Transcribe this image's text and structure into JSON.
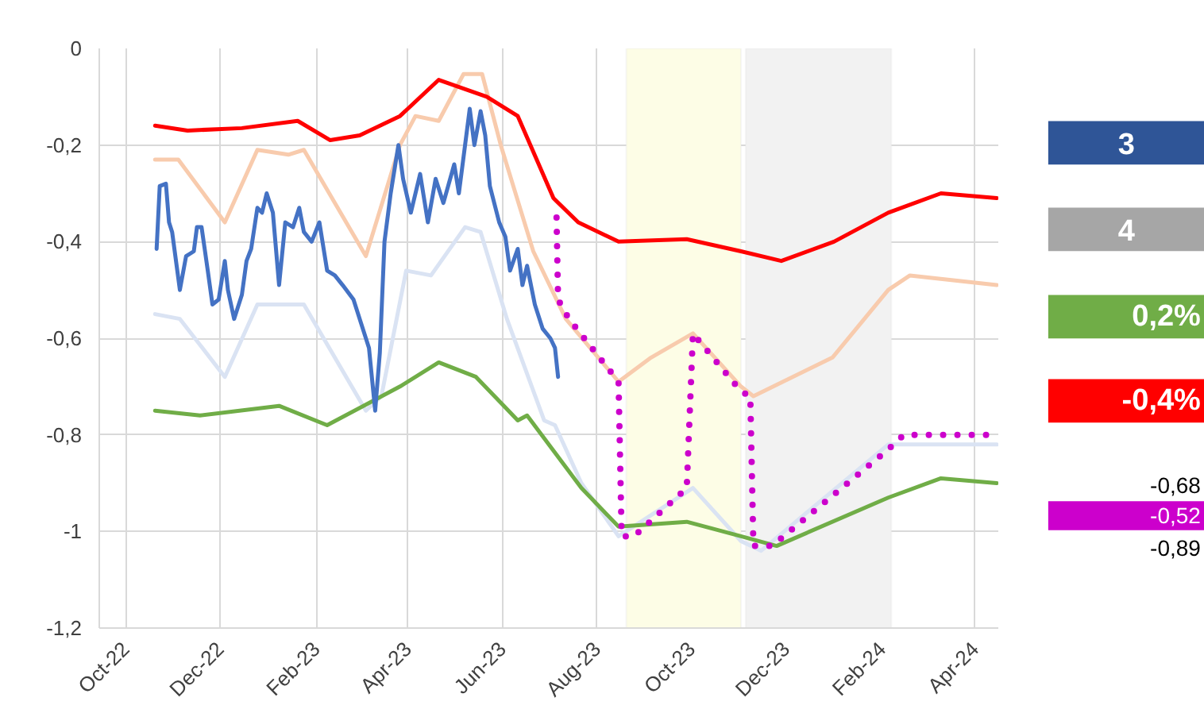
{
  "chart_data": {
    "type": "line",
    "xlim": [
      "2022-09-14",
      "2024-04-16"
    ],
    "ylim": [
      -1.2,
      0
    ],
    "xticks": [
      {
        "value": "2022-10-01",
        "label": "Oct-22"
      },
      {
        "value": "2022-12-01",
        "label": "Dec-22"
      },
      {
        "value": "2023-02-01",
        "label": "Feb-23"
      },
      {
        "value": "2023-04-01",
        "label": "Apr-23"
      },
      {
        "value": "2023-06-01",
        "label": "Jun-23"
      },
      {
        "value": "2023-08-01",
        "label": "Aug-23"
      },
      {
        "value": "2023-10-01",
        "label": "Oct-23"
      },
      {
        "value": "2023-12-01",
        "label": "Dec-23"
      },
      {
        "value": "2024-02-01",
        "label": "Feb-24"
      },
      {
        "value": "2024-04-01",
        "label": "Apr-24"
      }
    ],
    "yticks": [
      {
        "value": -1.2,
        "label": "-1,2"
      },
      -1,
      {
        "value": -0.8,
        "label": "-0,8"
      },
      {
        "value": -0.6,
        "label": "-0,6"
      },
      {
        "value": -0.4,
        "label": "-0,4"
      },
      {
        "value": -0.2,
        "label": "-0,2"
      },
      0
    ],
    "grid": true,
    "bands": [
      {
        "axis": "x",
        "from": "2023-08-20",
        "to": "2023-11-02",
        "color": "#fdfde6"
      },
      {
        "axis": "x",
        "from": "2023-11-05",
        "to": "2024-02-07",
        "color": "#f2f2f2"
      }
    ],
    "series": [
      {
        "color": "#dae3f3",
        "x": [
          "2022-10-20",
          "2022-11-05",
          "2022-12-04",
          "2022-12-25",
          "2023-01-24",
          "2023-03-05",
          "2023-03-15",
          "2023-03-31",
          "2023-04-16",
          "2023-05-08",
          "2023-05-18",
          "2023-06-04",
          "2023-06-28",
          "2023-07-05",
          "2023-07-22",
          "2023-08-15",
          "2023-10-02",
          "2023-11-02",
          "2023-11-15",
          "2024-02-05",
          "2024-04-15"
        ],
        "values": [
          -0.55,
          -0.56,
          -0.68,
          -0.53,
          -0.53,
          -0.75,
          -0.72,
          -0.46,
          -0.47,
          -0.37,
          -0.38,
          -0.56,
          -0.77,
          -0.78,
          -0.9,
          -1.01,
          -0.91,
          -1.02,
          -1.04,
          -0.82,
          -0.82
        ]
      },
      {
        "color": "#f8cbad",
        "x": [
          "2022-10-20",
          "2022-11-04",
          "2022-12-04",
          "2022-12-25",
          "2023-01-14",
          "2023-01-24",
          "2023-03-05",
          "2023-03-27",
          "2023-04-06",
          "2023-04-21",
          "2023-05-07",
          "2023-05-19",
          "2023-05-31",
          "2023-06-21",
          "2023-07-12",
          "2023-08-15",
          "2023-09-05",
          "2023-10-02",
          "2023-11-02",
          "2023-11-10",
          "2023-12-31",
          "2024-02-05",
          "2024-02-19",
          "2024-04-15"
        ],
        "values": [
          -0.23,
          -0.23,
          -0.36,
          -0.21,
          -0.22,
          -0.21,
          -0.43,
          -0.2,
          -0.14,
          -0.15,
          -0.053,
          -0.053,
          -0.2,
          -0.42,
          -0.56,
          -0.69,
          -0.64,
          -0.59,
          -0.7,
          -0.72,
          -0.64,
          -0.5,
          -0.47,
          -0.49
        ]
      },
      {
        "color": "#ff0000",
        "x": [
          "2022-10-20",
          "2022-11-10",
          "2022-12-15",
          "2023-01-20",
          "2023-02-10",
          "2023-03-01",
          "2023-03-27",
          "2023-04-21",
          "2023-05-22",
          "2023-06-11",
          "2023-07-04",
          "2023-07-20",
          "2023-08-15",
          "2023-09-28",
          "2023-11-02",
          "2023-11-28",
          "2024-01-01",
          "2024-02-05",
          "2024-03-10",
          "2024-04-15"
        ],
        "values": [
          -0.16,
          -0.17,
          -0.165,
          -0.15,
          -0.19,
          -0.18,
          -0.14,
          -0.065,
          -0.1,
          -0.14,
          -0.31,
          -0.36,
          -0.4,
          -0.395,
          -0.42,
          -0.44,
          -0.4,
          -0.34,
          -0.3,
          -0.31
        ]
      },
      {
        "color": "#70ad47",
        "x": [
          "2022-10-20",
          "2022-11-18",
          "2023-01-08",
          "2023-02-08",
          "2023-03-27",
          "2023-04-21",
          "2023-05-15",
          "2023-06-11",
          "2023-06-17",
          "2023-07-22",
          "2023-08-15",
          "2023-09-28",
          "2023-11-02",
          "2023-11-25",
          "2024-02-05",
          "2024-03-10",
          "2024-04-15"
        ],
        "values": [
          -0.75,
          -0.76,
          -0.74,
          -0.78,
          -0.7,
          -0.65,
          -0.68,
          -0.77,
          -0.76,
          -0.91,
          -0.99,
          -0.98,
          -1.01,
          -1.03,
          -0.93,
          -0.89,
          -0.9
        ]
      },
      {
        "color": "#4472c4",
        "x": [
          "2022-10-21",
          "2022-10-23",
          "2022-10-27",
          "2022-10-29",
          "2022-10-31",
          "2022-11-05",
          "2022-11-09",
          "2022-11-14",
          "2022-11-16",
          "2022-11-19",
          "2022-11-23",
          "2022-11-26",
          "2022-11-30",
          "2022-12-04",
          "2022-12-06",
          "2022-12-10",
          "2022-12-15",
          "2022-12-18",
          "2022-12-21",
          "2022-12-25",
          "2022-12-28",
          "2022-12-31",
          "2023-01-04",
          "2023-01-08",
          "2023-01-12",
          "2023-01-17",
          "2023-01-21",
          "2023-01-24",
          "2023-01-29",
          "2023-02-03",
          "2023-02-08",
          "2023-02-13",
          "2023-02-18",
          "2023-02-25",
          "2023-03-02",
          "2023-03-07",
          "2023-03-11",
          "2023-03-14",
          "2023-03-17",
          "2023-03-21",
          "2023-03-26",
          "2023-03-29",
          "2023-04-03",
          "2023-04-09",
          "2023-04-14",
          "2023-04-19",
          "2023-04-24",
          "2023-05-01",
          "2023-05-04",
          "2023-05-08",
          "2023-05-11",
          "2023-05-14",
          "2023-05-18",
          "2023-05-21",
          "2023-05-24",
          "2023-05-30",
          "2023-06-03",
          "2023-06-06",
          "2023-06-11",
          "2023-06-14",
          "2023-06-17",
          "2023-06-22",
          "2023-06-27",
          "2023-07-02",
          "2023-07-05",
          "2023-07-07"
        ],
        "values": [
          -0.415,
          -0.285,
          -0.28,
          -0.36,
          -0.38,
          -0.5,
          -0.43,
          -0.42,
          -0.37,
          -0.37,
          -0.46,
          -0.53,
          -0.52,
          -0.44,
          -0.5,
          -0.56,
          -0.51,
          -0.44,
          -0.415,
          -0.33,
          -0.34,
          -0.3,
          -0.34,
          -0.49,
          -0.36,
          -0.37,
          -0.33,
          -0.38,
          -0.4,
          -0.36,
          -0.46,
          -0.47,
          -0.49,
          -0.52,
          -0.57,
          -0.62,
          -0.75,
          -0.63,
          -0.4,
          -0.3,
          -0.2,
          -0.27,
          -0.34,
          -0.26,
          -0.36,
          -0.27,
          -0.32,
          -0.24,
          -0.3,
          -0.2,
          -0.125,
          -0.2,
          -0.13,
          -0.18,
          -0.285,
          -0.36,
          -0.39,
          -0.46,
          -0.415,
          -0.49,
          -0.45,
          -0.53,
          -0.58,
          -0.6,
          -0.62,
          -0.68
        ]
      },
      {
        "color": "#cc00cc",
        "line_style": "dotted",
        "x": [
          "2023-07-06",
          "2023-07-07",
          "2023-07-14",
          "2023-08-15",
          "2023-08-17",
          "2023-08-25",
          "2023-09-28",
          "2023-10-02",
          "2023-11-02",
          "2023-11-08",
          "2023-11-10",
          "2023-11-22",
          "2024-02-05",
          "2024-02-15",
          "2024-04-15"
        ],
        "values": [
          -0.35,
          -0.52,
          -0.56,
          -0.69,
          -1.01,
          -1.01,
          -0.91,
          -0.59,
          -0.71,
          -0.72,
          -1.03,
          -1.03,
          -0.83,
          -0.8,
          -0.8
        ]
      }
    ],
    "annotations": [
      "3",
      "4",
      "0,2%",
      "-0,4%",
      "-0,68",
      "-0,52",
      "-0,89"
    ]
  }
}
